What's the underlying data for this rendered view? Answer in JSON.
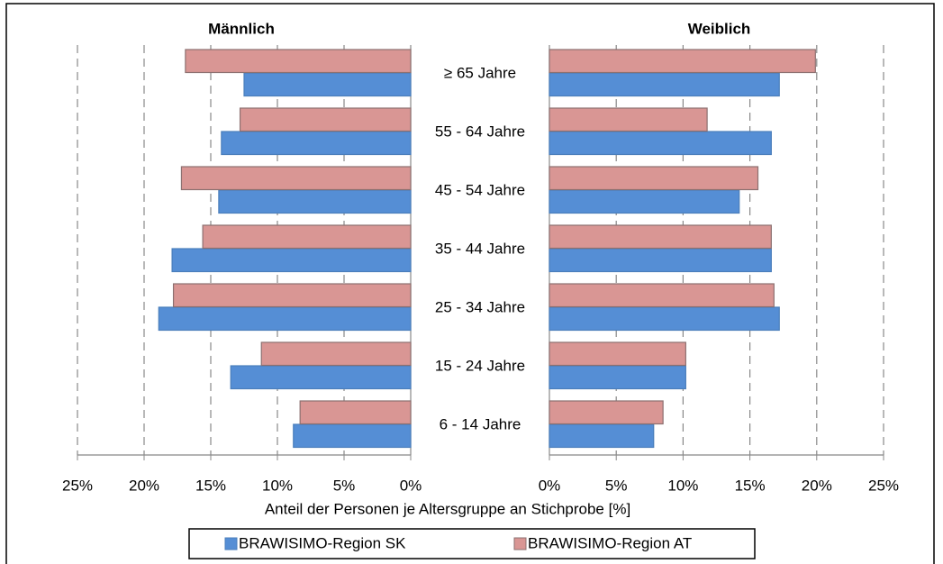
{
  "chart_data": {
    "type": "bar",
    "categories": [
      "≥ 65 Jahre",
      "55 - 64 Jahre",
      "45 - 54 Jahre",
      "35 - 44 Jahre",
      "25 - 34 Jahre",
      "15 - 24 Jahre",
      "6 - 14 Jahre"
    ],
    "xlabel": "Anteil der Personen je Altersgruppe an Stichprobe [%]",
    "series": [
      {
        "name": "BRAWISIMO-Region SK",
        "color": "#558ed5"
      },
      {
        "name": "BRAWISIMO-Region AT",
        "color": "#d99694"
      }
    ],
    "grid": true,
    "panels": [
      {
        "title": "Männlich",
        "xlim": [
          25,
          0
        ],
        "xticks": [
          {
            "value": 25,
            "label": "25%"
          },
          {
            "value": 20,
            "label": "20%"
          },
          {
            "value": 15,
            "label": "15%"
          },
          {
            "value": 10,
            "label": "10%"
          },
          {
            "value": 5,
            "label": "5%"
          },
          {
            "value": 0,
            "label": "0%"
          }
        ],
        "values": [
          [
            12.5,
            14.2,
            14.4,
            17.9,
            18.9,
            13.5,
            8.8
          ],
          [
            16.9,
            12.8,
            17.2,
            15.6,
            17.8,
            11.2,
            8.3
          ]
        ]
      },
      {
        "title": "Weiblich",
        "xlim": [
          0,
          25
        ],
        "xticks": [
          {
            "value": 0,
            "label": "0%"
          },
          {
            "value": 5,
            "label": "5%"
          },
          {
            "value": 10,
            "label": "10%"
          },
          {
            "value": 15,
            "label": "15%"
          },
          {
            "value": 20,
            "label": "20%"
          },
          {
            "value": 25,
            "label": "25%"
          }
        ],
        "values": [
          [
            17.2,
            16.6,
            14.2,
            16.6,
            17.2,
            10.2,
            7.8
          ],
          [
            19.9,
            11.8,
            15.6,
            16.6,
            16.8,
            10.2,
            8.5
          ]
        ]
      }
    ]
  }
}
